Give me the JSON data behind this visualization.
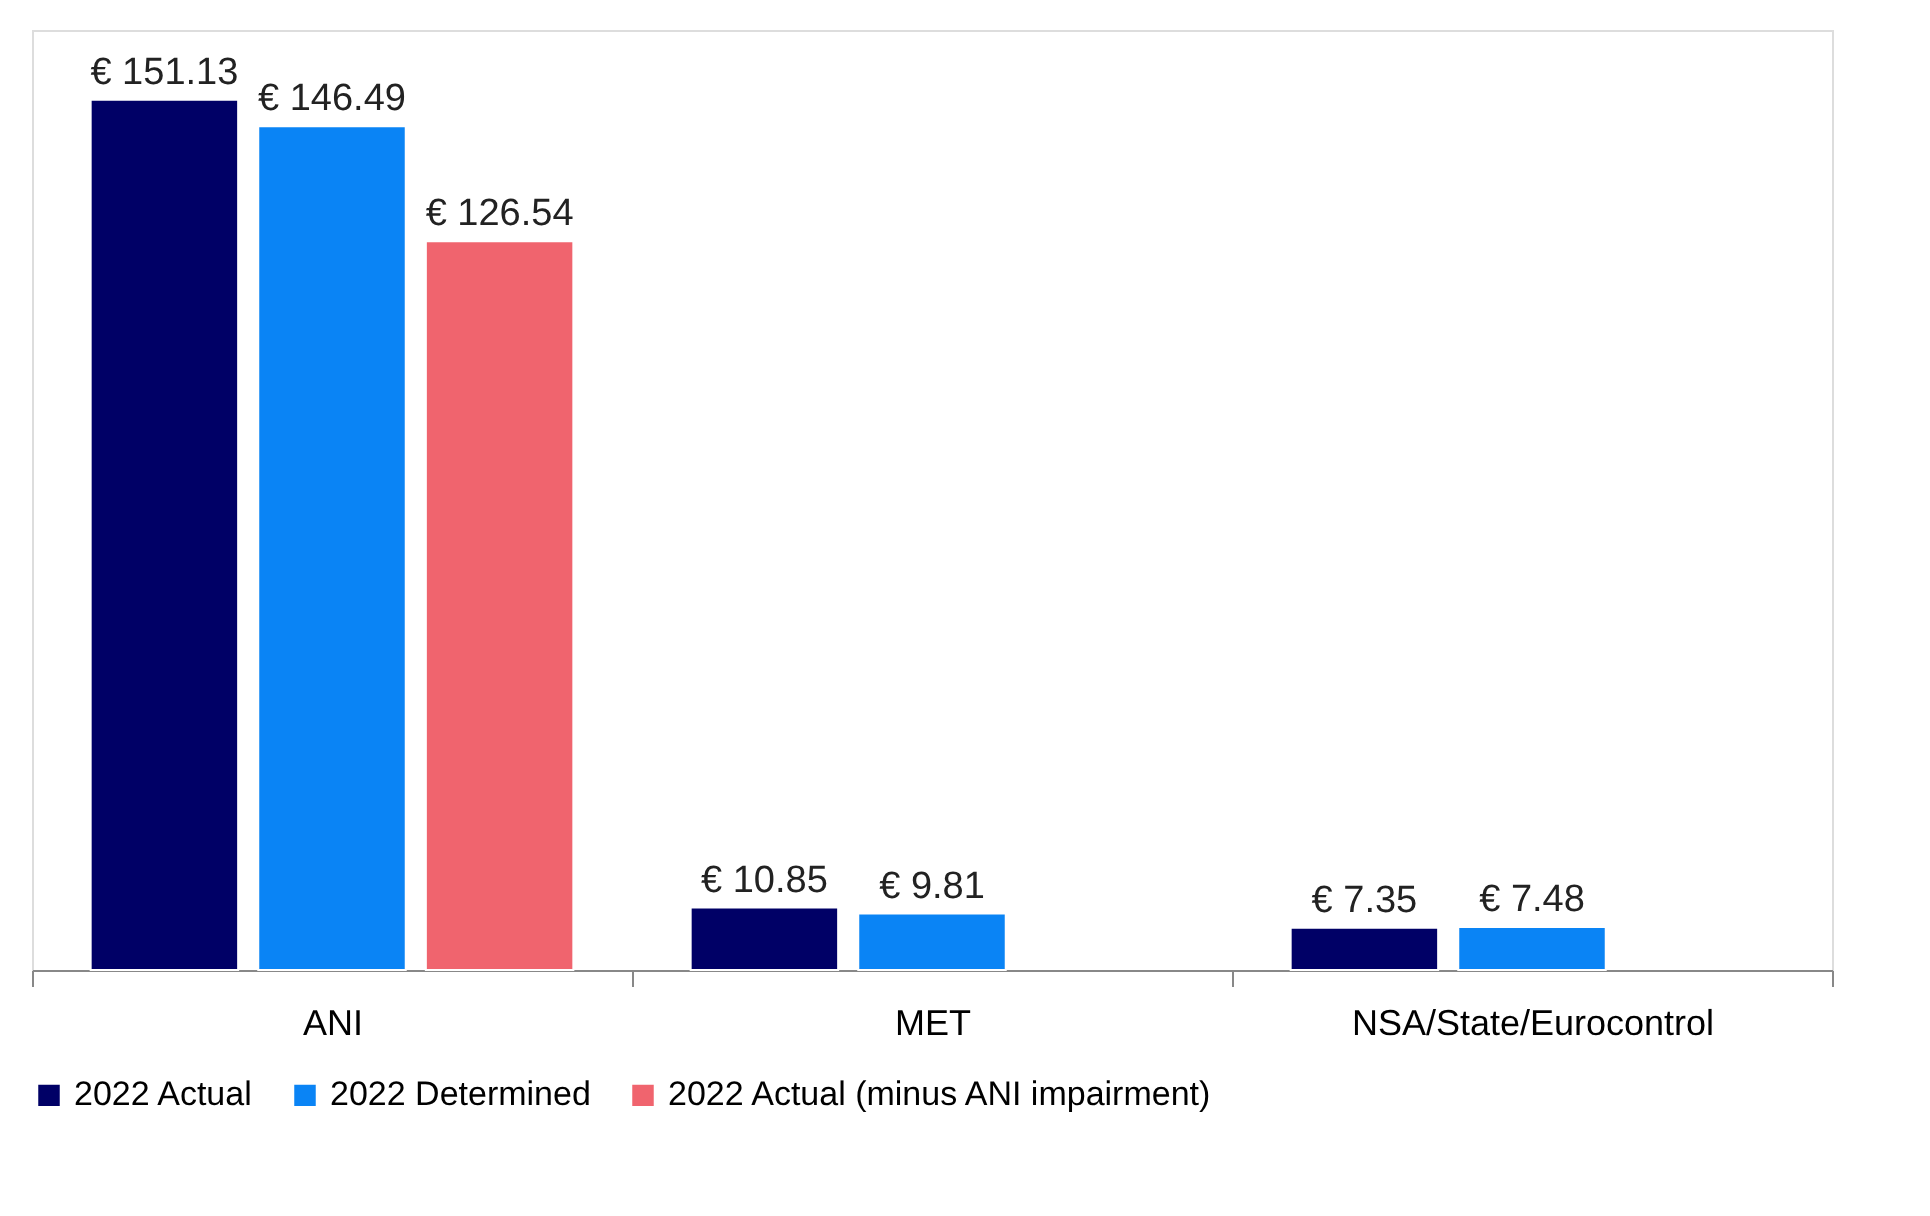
{
  "chart_data": {
    "type": "bar",
    "categories": [
      "ANI",
      "MET",
      "NSA/State/Eurocontrol"
    ],
    "series": [
      {
        "name": "2022 Actual",
        "color": "#000066",
        "values": [
          151.13,
          10.85,
          7.35
        ],
        "value_labels": [
          "€ 151.13",
          "€ 10.85",
          "€ 7.35"
        ]
      },
      {
        "name": "2022 Determined",
        "color": "#0a84f5",
        "values": [
          146.49,
          9.81,
          7.48
        ],
        "value_labels": [
          "€ 146.49",
          "€ 9.81",
          "€ 7.48"
        ]
      },
      {
        "name": "2022 Actual (minus ANI impairment)",
        "color": "#f0646e",
        "values": [
          126.54,
          null,
          null
        ],
        "value_labels": [
          "€ 126.54",
          null,
          null
        ]
      }
    ],
    "legend": "bottom",
    "grid": false,
    "tick_labels": "x"
  }
}
